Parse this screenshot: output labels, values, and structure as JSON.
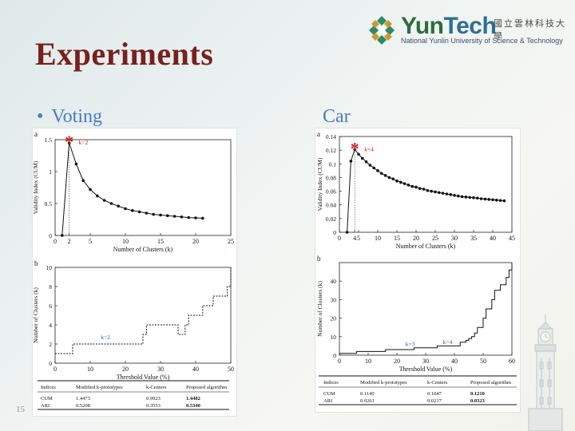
{
  "logo": {
    "word_left": "Yun",
    "word_right": "Tech",
    "chinese_name": "國立雲林科技大學",
    "english_name": "National Yunlin University of Science & Technology"
  },
  "slide": {
    "title": "Experiments",
    "bullet_marker": "•",
    "bullet_text": "Voting",
    "second_label": "Car",
    "page_number": "15"
  },
  "colors": {
    "title": "#7a1f1f",
    "bullet_text": "#4a7cc0",
    "marker_star": "#d11a1a",
    "annotation": "#3a4fb5"
  },
  "icons": [
    "yuntech-logo-icon",
    "clock-tower-icon"
  ],
  "panels": {
    "voting_a": {
      "label": "a",
      "annotation": "k=2"
    },
    "voting_b": {
      "label": "b",
      "annotation": "k=2"
    },
    "car_a": {
      "label": "a",
      "annotation": "k=4"
    },
    "car_b": {
      "label": "b",
      "annotation_1": "k=3",
      "annotation_2": "k=4"
    }
  },
  "chart_data": [
    {
      "type": "line",
      "panel": "voting-a",
      "xlabel": "Number of Clusters (k)",
      "ylabel": "Validity Index (CUM)",
      "xlim": [
        0,
        25
      ],
      "ylim": [
        0,
        1.5
      ],
      "xticks": [
        0,
        2,
        5,
        10,
        15,
        20,
        25
      ],
      "yticks": [
        0,
        0.5,
        1,
        1.5
      ],
      "grid": false,
      "highlight": {
        "x": 2,
        "y": 1.45,
        "label": "k=2"
      },
      "x": [
        1,
        2,
        3,
        4,
        5,
        6,
        7,
        8,
        9,
        10,
        11,
        12,
        13,
        14,
        15,
        16,
        17,
        18,
        19,
        20,
        21
      ],
      "y": [
        0,
        1.45,
        1.12,
        0.86,
        0.72,
        0.62,
        0.55,
        0.5,
        0.46,
        0.42,
        0.39,
        0.37,
        0.35,
        0.33,
        0.32,
        0.31,
        0.3,
        0.29,
        0.28,
        0.275,
        0.27
      ]
    },
    {
      "type": "line",
      "panel": "voting-b",
      "xlabel": "Threshold Value (%)",
      "ylabel": "Number of Clusters (k)",
      "xlim": [
        0,
        50
      ],
      "ylim": [
        0,
        10
      ],
      "xticks": [
        0,
        10,
        20,
        30,
        40,
        50
      ],
      "yticks": [
        0,
        2,
        4,
        6,
        8,
        10
      ],
      "grid": false,
      "annotation": {
        "x": 13,
        "y": 2.5,
        "label": "k=2"
      },
      "x": [
        0,
        4,
        5,
        9,
        24,
        25,
        26,
        27,
        28,
        34,
        35,
        36,
        37,
        38,
        39,
        40,
        41,
        42,
        43,
        44,
        45,
        46,
        47,
        48,
        49,
        50
      ],
      "y": [
        1,
        1,
        2,
        2,
        2,
        3,
        4,
        4,
        4,
        4,
        3,
        3,
        4,
        5,
        5,
        5,
        5,
        6,
        6,
        6,
        7,
        7,
        7,
        7,
        8,
        10
      ]
    },
    {
      "type": "line",
      "panel": "car-a",
      "xlabel": "Number of Clusters (k)",
      "ylabel": "Validity Index (CUM)",
      "xlim": [
        0,
        45
      ],
      "ylim": [
        0,
        0.14
      ],
      "xticks": [
        0,
        4,
        5,
        10,
        15,
        20,
        25,
        30,
        35,
        40,
        45
      ],
      "yticks": [
        0,
        0.02,
        0.04,
        0.06,
        0.08,
        0.1,
        0.12,
        0.14
      ],
      "grid": false,
      "highlight": {
        "x": 4,
        "y": 0.121,
        "label": "k=4"
      },
      "x": [
        2,
        3,
        4,
        5,
        6,
        7,
        8,
        9,
        10,
        11,
        12,
        13,
        14,
        15,
        16,
        17,
        18,
        19,
        20,
        21,
        22,
        23,
        24,
        25,
        26,
        27,
        28,
        29,
        30,
        31,
        32,
        33,
        34,
        35,
        36,
        37,
        38,
        39,
        40,
        41,
        42,
        43
      ],
      "y": [
        0,
        0.104,
        0.121,
        0.114,
        0.108,
        0.103,
        0.098,
        0.094,
        0.09,
        0.086,
        0.083,
        0.08,
        0.078,
        0.075,
        0.073,
        0.071,
        0.069,
        0.067,
        0.066,
        0.064,
        0.063,
        0.061,
        0.06,
        0.059,
        0.058,
        0.057,
        0.056,
        0.055,
        0.054,
        0.053,
        0.052,
        0.0515,
        0.051,
        0.0505,
        0.05,
        0.049,
        0.0485,
        0.048,
        0.0475,
        0.047,
        0.0465,
        0.046
      ]
    },
    {
      "type": "line",
      "panel": "car-b",
      "xlabel": "Threshold Value (%)",
      "ylabel": "Number of Clusters (k)",
      "xlim": [
        0,
        60
      ],
      "ylim": [
        0,
        50
      ],
      "xticks": [
        0,
        10,
        20,
        30,
        40,
        50,
        60
      ],
      "yticks": [
        0,
        10,
        20,
        30,
        40
      ],
      "grid": false,
      "annotations": [
        {
          "x": 23,
          "y": 5,
          "label": "k=3"
        },
        {
          "x": 36,
          "y": 6,
          "label": "k=4"
        }
      ],
      "x": [
        0,
        5,
        6,
        15,
        16,
        25,
        26,
        33,
        34,
        41,
        42,
        44,
        45,
        46,
        47,
        48,
        50,
        51,
        53,
        54,
        55,
        56,
        58,
        59,
        60
      ],
      "y": [
        1,
        1,
        2,
        2,
        3,
        3,
        4,
        4,
        5,
        5,
        7,
        8,
        9,
        10,
        12,
        15,
        20,
        25,
        30,
        35,
        35,
        38,
        42,
        46,
        50
      ]
    },
    {
      "type": "table",
      "panel": "voting-table",
      "columns": [
        "Indices",
        "Modified k-prototypes",
        "k-Centers",
        "Proposed algorithm"
      ],
      "rows": [
        [
          "CUM",
          "1.4473",
          "0.9923",
          "1.4482"
        ],
        [
          "ARI",
          "0.5208",
          "0.3553",
          "0.5340"
        ]
      ],
      "bold_column": 3
    },
    {
      "type": "table",
      "panel": "car-table",
      "columns": [
        "Indices",
        "Modified k-prototypes",
        "k-Centers",
        "Proposed algorithm"
      ],
      "rows": [
        [
          "CUM",
          "0.1140",
          "0.1047",
          "0.1210"
        ],
        [
          "ARI",
          "0.0261",
          "0.0217",
          "0.0323"
        ]
      ],
      "bold_column": 3
    }
  ]
}
